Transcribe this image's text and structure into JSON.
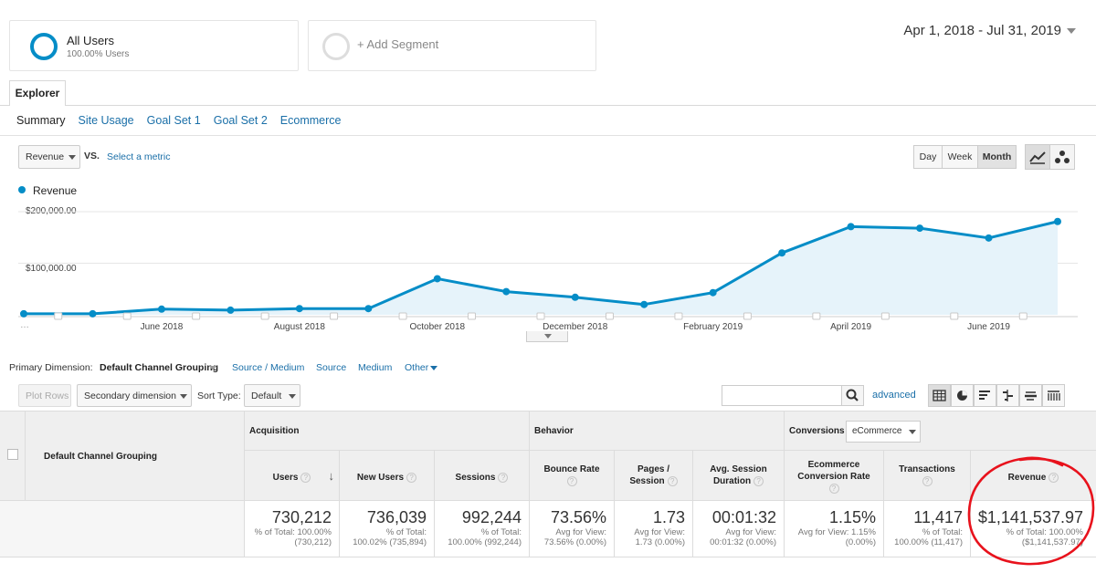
{
  "segments": {
    "all_users": {
      "title": "All Users",
      "subtitle": "100.00% Users"
    },
    "add_segment": "+ Add Segment"
  },
  "date_range": "Apr 1, 2018 - Jul 31, 2019",
  "tabs": {
    "explorer": "Explorer"
  },
  "subtabs": [
    "Summary",
    "Site Usage",
    "Goal Set 1",
    "Goal Set 2",
    "Ecommerce"
  ],
  "metric": {
    "selected": "Revenue",
    "vs": "VS.",
    "select_metric": "Select a metric"
  },
  "period": {
    "day": "Day",
    "week": "Week",
    "month": "Month"
  },
  "colors": {
    "accent": "#058dc7",
    "fill": "#e6f3fa",
    "annotation": "#e8121c",
    "link": "#1a6fa8"
  },
  "icons": {
    "line_chart": "line-chart-icon",
    "motion_chart": "motion-chart-icon",
    "search": "search-icon"
  },
  "chart_data": {
    "type": "area",
    "legend": [
      "Revenue"
    ],
    "x_ticks": [
      "June 2018",
      "August 2018",
      "October 2018",
      "December 2018",
      "February 2019",
      "April 2019",
      "June 2019"
    ],
    "y_ticks": [
      "$200,000.00",
      "$100,000.00"
    ],
    "ylim": [
      0,
      220000
    ],
    "x": [
      "2018-04",
      "2018-05",
      "2018-06",
      "2018-07",
      "2018-08",
      "2018-09",
      "2018-10",
      "2018-11",
      "2018-12",
      "2019-01",
      "2019-02",
      "2019-03",
      "2019-04",
      "2019-05",
      "2019-06",
      "2019-07"
    ],
    "series": [
      {
        "values": [
          2000,
          2000,
          11000,
          9000,
          12000,
          12000,
          70000,
          45000,
          34000,
          20000,
          43000,
          120000,
          171000,
          168000,
          149000,
          181000
        ]
      }
    ]
  },
  "dimension": {
    "label": "Primary Dimension:",
    "active": "Default Channel Grouping",
    "links": [
      "Source / Medium",
      "Source",
      "Medium",
      "Other"
    ]
  },
  "toolbar": {
    "plot_rows": "Plot Rows",
    "secondary_dimension": "Secondary dimension",
    "sort_type_label": "Sort Type:",
    "sort_type_value": "Default",
    "advanced": "advanced"
  },
  "table": {
    "first_col": "Default Channel Grouping",
    "groups": {
      "acquisition": "Acquisition",
      "behavior": "Behavior",
      "conversions": "Conversions",
      "conversions_select": "eCommerce"
    },
    "columns": [
      {
        "label": "Users",
        "value": "730,212",
        "sub1": "% of Total: 100.00%",
        "sub2": "(730,212)"
      },
      {
        "label": "New Users",
        "value": "736,039",
        "sub1": "% of Total:",
        "sub2": "100.02% (735,894)"
      },
      {
        "label": "Sessions",
        "value": "992,244",
        "sub1": "% of Total:",
        "sub2": "100.00% (992,244)"
      },
      {
        "label": "Bounce Rate",
        "value": "73.56%",
        "sub1": "Avg for View:",
        "sub2": "73.56% (0.00%)"
      },
      {
        "label": "Pages / Session",
        "label1": "Pages /",
        "label2": "Session",
        "value": "1.73",
        "sub1": "Avg for View:",
        "sub2": "1.73 (0.00%)"
      },
      {
        "label": "Avg. Session Duration",
        "label1": "Avg. Session",
        "label2": "Duration",
        "value": "00:01:32",
        "sub1": "Avg for View:",
        "sub2": "00:01:32 (0.00%)"
      },
      {
        "label": "Ecommerce Conversion Rate",
        "label1": "Ecommerce",
        "label2": "Conversion Rate",
        "value": "1.15%",
        "sub1": "Avg for View: 1.15%",
        "sub2": "(0.00%)"
      },
      {
        "label": "Transactions",
        "value": "11,417",
        "sub1": "% of Total:",
        "sub2": "100.00% (11,417)"
      },
      {
        "label": "Revenue",
        "value": "$1,141,537.97",
        "sub1": "% of Total: 100.00%",
        "sub2": "($1,141,537.97)"
      }
    ]
  }
}
